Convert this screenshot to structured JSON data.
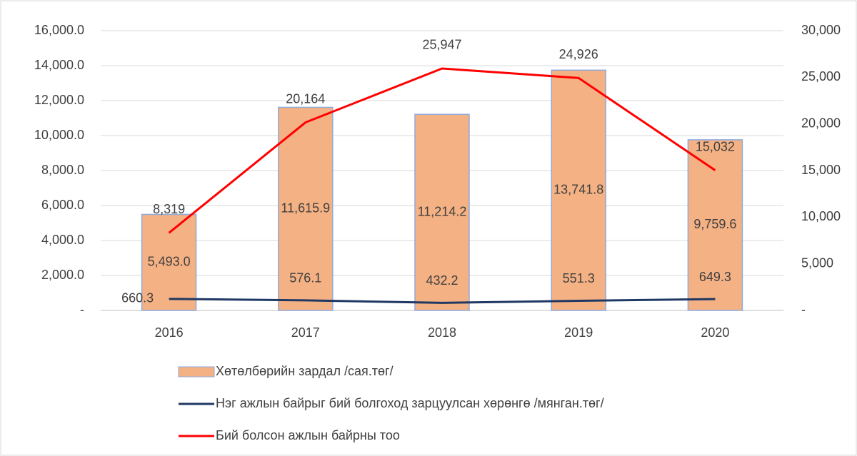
{
  "chart_data": {
    "type": "bar",
    "categories": [
      "2016",
      "2017",
      "2018",
      "2019",
      "2020"
    ],
    "series": [
      {
        "name": "Хөтөлбөрийн зардал /сая.төг/",
        "type": "bar",
        "color": "#f4b183",
        "values": [
          5493.0,
          11615.9,
          11214.2,
          13741.8,
          9759.6
        ],
        "value_labels": [
          "5,493.0",
          "11,615.9",
          "11,214.2",
          "13,741.8",
          "9,759.6"
        ]
      },
      {
        "name": "Нэг ажлын байрыг бий болгоход зарцуулсан хөрөнгө /мянган.төг/",
        "type": "line",
        "color": "#1f3864",
        "values": [
          660.3,
          576.1,
          432.2,
          551.3,
          649.3
        ]
      },
      {
        "name": "Бий болсон ажлын байрны тоо",
        "type": "line",
        "axis": "y2",
        "color": "#ff0000",
        "values": [
          8319,
          20164,
          25947,
          24926,
          15032
        ],
        "value_labels": [
          "8,319",
          "20,164",
          "25,947",
          "24,926",
          "15,032"
        ]
      }
    ],
    "ylim": [
      0,
      16000
    ],
    "yticks": [
      {
        "value": 0,
        "label": "-"
      },
      {
        "value": 2000,
        "label": "2,000.0"
      },
      {
        "value": 4000,
        "label": "4,000.0"
      },
      {
        "value": 6000,
        "label": "6,000.0"
      },
      {
        "value": 8000,
        "label": "8,000.0"
      },
      {
        "value": 10000,
        "label": "10,000.0"
      },
      {
        "value": 12000,
        "label": "12,000.0"
      },
      {
        "value": 14000,
        "label": "14,000.0"
      },
      {
        "value": 16000,
        "label": "16,000.0"
      }
    ],
    "y2lim": [
      0,
      30000
    ],
    "y2ticks": [
      {
        "value": 0,
        "label": "-"
      },
      {
        "value": 5000,
        "label": "5,000"
      },
      {
        "value": 10000,
        "label": "10,000"
      },
      {
        "value": 15000,
        "label": "15,000"
      },
      {
        "value": 20000,
        "label": "20,000"
      },
      {
        "value": 25000,
        "label": "25,000"
      },
      {
        "value": 30000,
        "label": "30,000"
      }
    ],
    "grid": true,
    "legend": "bottom"
  }
}
